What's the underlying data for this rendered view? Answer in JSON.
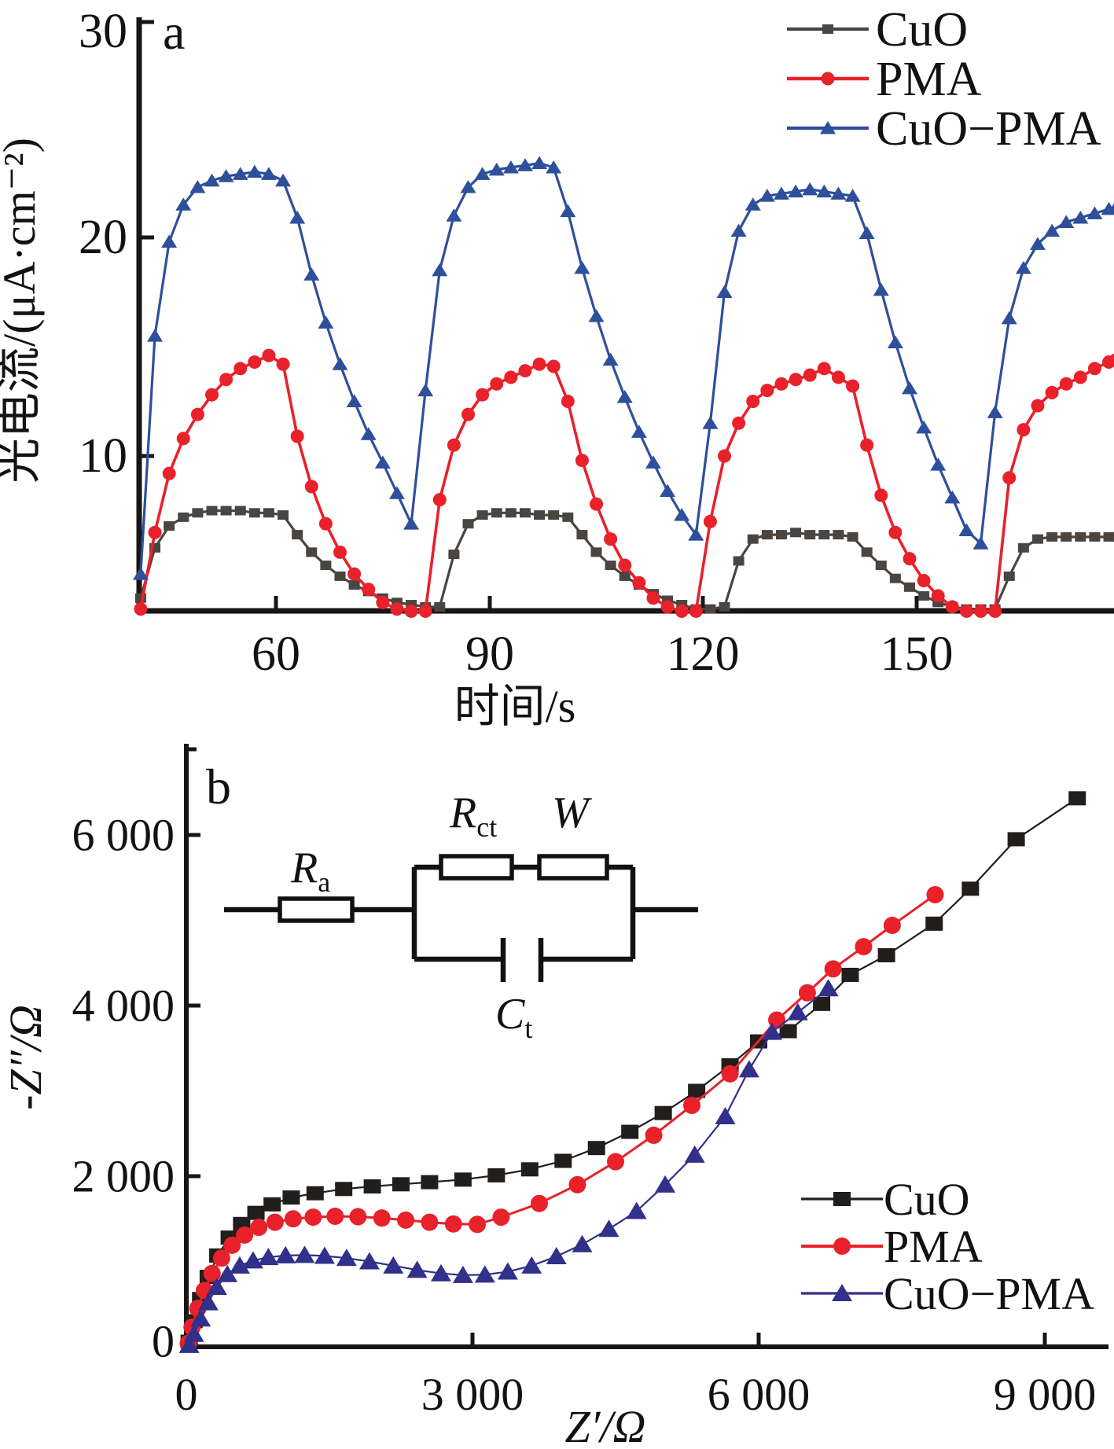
{
  "chart_data": [
    {
      "type": "line",
      "panel": "a",
      "panel_label": "a",
      "xlabel": "时间/s",
      "ylabel": "光电流/(μA·cm⁻²)",
      "xlim": [
        40.8,
        177.7
      ],
      "ylim": [
        2.9,
        30
      ],
      "grid": false,
      "legend_position": "top-right",
      "xticks": [
        {
          "v": 60,
          "label": "60"
        },
        {
          "v": 90,
          "label": "90"
        },
        {
          "v": 120,
          "label": "120"
        },
        {
          "v": 150,
          "label": "150"
        }
      ],
      "yticks": [
        {
          "v": 10,
          "label": "10"
        },
        {
          "v": 20,
          "label": "20"
        },
        {
          "v": 30,
          "label": "30"
        }
      ],
      "x": [
        41,
        43,
        45,
        47,
        49,
        51,
        53,
        55,
        57,
        59,
        61,
        63,
        65,
        67,
        69,
        71,
        73,
        75,
        77,
        79,
        81,
        83,
        85,
        87,
        89,
        91,
        93,
        95,
        97,
        99,
        101,
        103,
        105,
        107,
        109,
        111,
        113,
        115,
        117,
        119,
        121,
        123,
        125,
        127,
        129,
        131,
        133,
        135,
        137,
        139,
        141,
        143,
        145,
        147,
        149,
        151,
        153,
        155,
        157,
        159,
        161,
        163,
        165,
        167,
        169,
        171,
        173,
        175,
        177,
        178
      ],
      "series": [
        {
          "name": "CuO",
          "color": "#4a4540",
          "marker": "square",
          "y": [
            3.5,
            5.8,
            6.8,
            7.2,
            7.4,
            7.5,
            7.5,
            7.5,
            7.4,
            7.4,
            7.3,
            6.4,
            5.6,
            5.0,
            4.5,
            4.1,
            3.8,
            3.5,
            3.3,
            3.2,
            3.1,
            3.1,
            5.5,
            6.9,
            7.3,
            7.4,
            7.4,
            7.4,
            7.3,
            7.3,
            7.2,
            6.4,
            5.6,
            5.0,
            4.5,
            4.1,
            3.7,
            3.4,
            3.2,
            3.0,
            3.0,
            3.1,
            5.2,
            6.2,
            6.4,
            6.4,
            6.5,
            6.4,
            6.4,
            6.4,
            6.3,
            5.6,
            5.0,
            4.4,
            4.0,
            3.6,
            3.3,
            3.1,
            3.0,
            3.0,
            3.0,
            4.5,
            5.8,
            6.2,
            6.3,
            6.3,
            6.3,
            6.3,
            6.3,
            6.3
          ]
        },
        {
          "name": "PMA",
          "color": "#e8212b",
          "marker": "circle",
          "y": [
            3.0,
            6.5,
            9.2,
            10.8,
            11.9,
            12.8,
            13.5,
            14.0,
            14.3,
            14.6,
            14.2,
            10.9,
            8.6,
            6.9,
            5.6,
            4.6,
            3.9,
            3.3,
            3.0,
            2.9,
            2.9,
            8.0,
            10.5,
            11.9,
            12.8,
            13.3,
            13.6,
            13.9,
            14.2,
            14.1,
            12.5,
            9.8,
            7.8,
            6.2,
            5.0,
            4.2,
            3.5,
            3.1,
            2.9,
            2.9,
            7.0,
            10.0,
            11.5,
            12.5,
            13.0,
            13.3,
            13.5,
            13.7,
            14.0,
            13.6,
            13.2,
            10.5,
            8.2,
            6.5,
            5.3,
            4.3,
            3.6,
            3.1,
            2.9,
            2.9,
            2.9,
            9.0,
            11.2,
            12.3,
            12.9,
            13.3,
            13.6,
            14.0,
            14.3,
            14.4
          ]
        },
        {
          "name": "CuO−PMA",
          "color": "#2e4f9b",
          "marker": "triangle",
          "y": [
            4.6,
            15.5,
            19.8,
            21.5,
            22.3,
            22.6,
            22.8,
            22.9,
            23.0,
            22.9,
            22.6,
            20.9,
            18.3,
            16.1,
            14.2,
            12.5,
            11.0,
            9.7,
            8.3,
            6.9,
            13.0,
            18.5,
            21.0,
            22.3,
            22.9,
            23.1,
            23.2,
            23.3,
            23.4,
            23.2,
            21.2,
            18.6,
            16.4,
            14.4,
            12.7,
            11.1,
            9.7,
            8.4,
            7.3,
            6.4,
            11.5,
            17.5,
            20.3,
            21.5,
            21.9,
            22.0,
            22.1,
            22.2,
            22.1,
            22.0,
            21.9,
            20.2,
            17.6,
            15.2,
            13.1,
            11.3,
            9.6,
            8.1,
            6.6,
            6.0,
            12.0,
            16.3,
            18.6,
            19.7,
            20.3,
            20.7,
            20.9,
            21.1,
            21.3,
            21.4
          ]
        }
      ]
    },
    {
      "type": "scatter",
      "panel": "b",
      "panel_label": "b",
      "xlabel": "Z′/Ω",
      "ylabel": "-Z″/Ω",
      "xlim": [
        0,
        9650
      ],
      "ylim": [
        0,
        7050
      ],
      "grid": false,
      "legend_position": "bottom-right",
      "xticks": [
        {
          "v": 0,
          "label": "0"
        },
        {
          "v": 3000,
          "label": "3 000"
        },
        {
          "v": 6000,
          "label": "6 000"
        },
        {
          "v": 9000,
          "label": "9 000"
        }
      ],
      "yticks": [
        {
          "v": 0,
          "label": "0"
        },
        {
          "v": 2000,
          "label": "2 000"
        },
        {
          "v": 4000,
          "label": "4 000"
        },
        {
          "v": 6000,
          "label": "6 000"
        }
      ],
      "series": [
        {
          "name": "CuO",
          "color": "#221e1c",
          "marker": "square",
          "x": [
            30,
            80,
            150,
            230,
            330,
            450,
            580,
            730,
            900,
            1100,
            1350,
            1650,
            1950,
            2250,
            2550,
            2900,
            3250,
            3600,
            3950,
            4300,
            4650,
            5000,
            5350,
            5700,
            6000,
            6310,
            6660,
            6960,
            7340,
            7840,
            8220,
            8700,
            9340
          ],
          "y": [
            60,
            300,
            560,
            820,
            1070,
            1280,
            1440,
            1570,
            1670,
            1750,
            1800,
            1850,
            1880,
            1905,
            1930,
            1960,
            2010,
            2080,
            2180,
            2330,
            2520,
            2740,
            3000,
            3300,
            3580,
            3700,
            4020,
            4360,
            4590,
            4960,
            5370,
            5950,
            6430
          ]
        },
        {
          "name": "PMA",
          "color": "#e8212b",
          "marker": "circle",
          "x": [
            20,
            60,
            120,
            190,
            270,
            370,
            480,
            610,
            760,
            930,
            1120,
            1330,
            1560,
            1800,
            2050,
            2300,
            2550,
            2800,
            3050,
            3300,
            3700,
            4100,
            4500,
            4900,
            5300,
            5700,
            6190,
            6510,
            6780,
            7100,
            7400,
            7850
          ],
          "y": [
            40,
            230,
            450,
            660,
            860,
            1040,
            1190,
            1310,
            1400,
            1460,
            1500,
            1520,
            1530,
            1525,
            1510,
            1485,
            1460,
            1440,
            1435,
            1520,
            1680,
            1900,
            2170,
            2480,
            2830,
            3200,
            3830,
            4150,
            4430,
            4690,
            4940,
            5300
          ]
        },
        {
          "name": "CuO−PMA",
          "color": "#31308a",
          "marker": "triangle",
          "x": [
            30,
            80,
            150,
            230,
            320,
            430,
            560,
            700,
            860,
            1040,
            1240,
            1450,
            1680,
            1920,
            2170,
            2420,
            2670,
            2900,
            3130,
            3370,
            3620,
            3880,
            4150,
            4430,
            4720,
            5020,
            5330,
            5650,
            5900,
            6140,
            6410,
            6730
          ],
          "y": [
            20,
            150,
            330,
            520,
            700,
            850,
            950,
            1010,
            1050,
            1070,
            1075,
            1065,
            1040,
            1000,
            950,
            900,
            860,
            840,
            845,
            880,
            950,
            1060,
            1200,
            1380,
            1590,
            1900,
            2250,
            2700,
            3250,
            3690,
            3920,
            4200
          ]
        }
      ],
      "inset_circuit": {
        "description": "equivalent circuit: Ra in series with [ (Rct + W) parallel to Ct ]",
        "labels": {
          "ra": "R",
          "ra_sub": "a",
          "rct": "R",
          "rct_sub": "ct",
          "w": "W",
          "ct": "C",
          "ct_sub": "t"
        }
      }
    }
  ]
}
